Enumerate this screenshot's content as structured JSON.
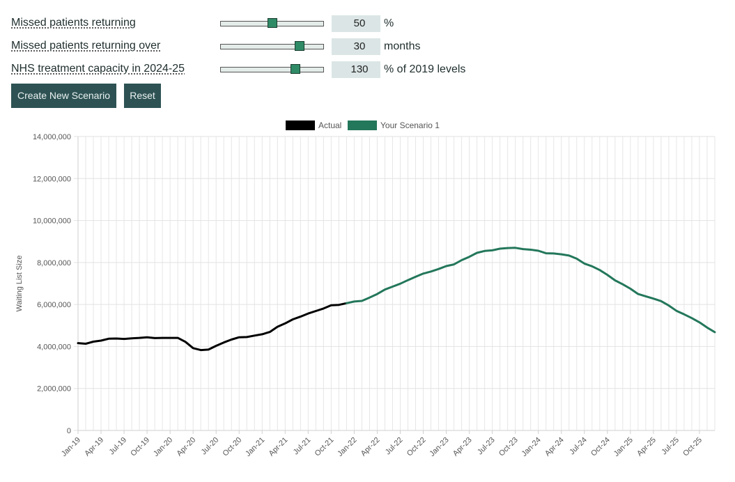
{
  "controls": [
    {
      "label": "Missed patients returning",
      "value": "50",
      "unit": "%",
      "fraction": 0.5
    },
    {
      "label": "Missed patients returning over",
      "value": "30",
      "unit": "months",
      "fraction": 0.77
    },
    {
      "label": "NHS treatment capacity in 2024-25",
      "value": "130",
      "unit": "% of 2019 levels",
      "fraction": 0.73
    }
  ],
  "buttons": {
    "create_label": "Create New Scenario",
    "reset_label": "Reset"
  },
  "colors": {
    "actual": "#000000",
    "scenario": "#23775a",
    "button_bg": "#2e5254",
    "slider_thumb": "#2f8a66"
  },
  "chart_data": {
    "type": "line",
    "ylabel": "Waiting List Size",
    "ylim": [
      0,
      14000000
    ],
    "yticks": [
      0,
      2000000,
      4000000,
      6000000,
      8000000,
      10000000,
      12000000,
      14000000
    ],
    "ytick_labels": [
      "0",
      "2,000,000",
      "4,000,000",
      "6,000,000",
      "8,000,000",
      "10,000,000",
      "12,000,000",
      "14,000,000"
    ],
    "x_start": "Jan-19",
    "x_end": "Dec-25",
    "xtick_labels": [
      "Jan-19",
      "Apr-19",
      "Jul-19",
      "Oct-19",
      "Jan-20",
      "Apr-20",
      "Jul-20",
      "Oct-20",
      "Jan-21",
      "Apr-21",
      "Jul-21",
      "Oct-21",
      "Jan-22",
      "Apr-22",
      "Jul-22",
      "Oct-22",
      "Jan-23",
      "Apr-23",
      "Jul-23",
      "Oct-23",
      "Jan-24",
      "Apr-24",
      "Jul-24",
      "Oct-24",
      "Jan-25",
      "Apr-25",
      "Jul-25",
      "Oct-25"
    ],
    "legend_position": "top",
    "grid": true,
    "series": [
      {
        "name": "Actual",
        "x": [
          "Jan-19",
          "Feb-19",
          "Mar-19",
          "Apr-19",
          "May-19",
          "Jun-19",
          "Jul-19",
          "Aug-19",
          "Sep-19",
          "Oct-19",
          "Nov-19",
          "Dec-19",
          "Jan-20",
          "Feb-20",
          "Mar-20",
          "Apr-20",
          "May-20",
          "Jun-20",
          "Jul-20",
          "Aug-20",
          "Sep-20",
          "Oct-20",
          "Nov-20",
          "Dec-20",
          "Jan-21",
          "Feb-21",
          "Mar-21",
          "Apr-21",
          "May-21",
          "Jun-21",
          "Jul-21",
          "Aug-21",
          "Sep-21",
          "Oct-21",
          "Nov-21",
          "Dec-21"
        ],
        "values": [
          4160000,
          4130000,
          4230000,
          4280000,
          4370000,
          4380000,
          4360000,
          4390000,
          4410000,
          4440000,
          4400000,
          4410000,
          4410000,
          4410000,
          4220000,
          3920000,
          3830000,
          3850000,
          4030000,
          4190000,
          4330000,
          4440000,
          4450000,
          4520000,
          4580000,
          4690000,
          4940000,
          5100000,
          5290000,
          5420000,
          5570000,
          5690000,
          5810000,
          5960000,
          5980000,
          6060000
        ]
      },
      {
        "name": "Your Scenario 1",
        "x": [
          "Dec-21",
          "Jan-22",
          "Feb-22",
          "Mar-22",
          "Apr-22",
          "May-22",
          "Jun-22",
          "Jul-22",
          "Aug-22",
          "Sep-22",
          "Oct-22",
          "Nov-22",
          "Dec-22",
          "Jan-23",
          "Feb-23",
          "Mar-23",
          "Apr-23",
          "May-23",
          "Jun-23",
          "Jul-23",
          "Aug-23",
          "Sep-23",
          "Oct-23",
          "Nov-23",
          "Dec-23",
          "Jan-24",
          "Feb-24",
          "Mar-24",
          "Apr-24",
          "May-24",
          "Jun-24",
          "Jul-24",
          "Aug-24",
          "Sep-24",
          "Oct-24",
          "Nov-24",
          "Dec-24",
          "Jan-25",
          "Feb-25",
          "Mar-25",
          "Apr-25",
          "May-25",
          "Jun-25",
          "Jul-25",
          "Aug-25",
          "Sep-25",
          "Oct-25",
          "Nov-25",
          "Dec-25"
        ],
        "values": [
          6060000,
          6140000,
          6170000,
          6330000,
          6500000,
          6710000,
          6850000,
          6990000,
          7160000,
          7320000,
          7470000,
          7570000,
          7690000,
          7830000,
          7910000,
          8110000,
          8270000,
          8460000,
          8550000,
          8580000,
          8660000,
          8690000,
          8700000,
          8640000,
          8610000,
          8560000,
          8440000,
          8430000,
          8390000,
          8330000,
          8180000,
          7950000,
          7820000,
          7640000,
          7410000,
          7150000,
          6960000,
          6750000,
          6500000,
          6390000,
          6280000,
          6160000,
          5950000,
          5700000,
          5530000,
          5350000,
          5150000,
          4900000,
          4680000
        ]
      }
    ]
  }
}
